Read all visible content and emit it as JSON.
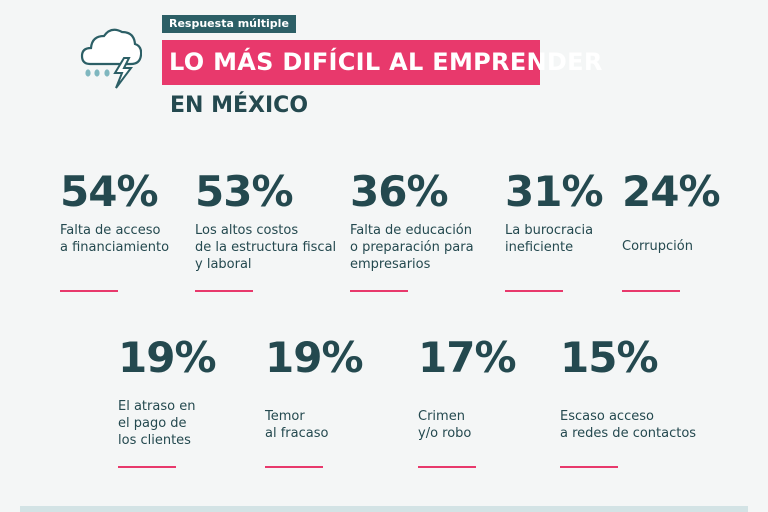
{
  "header": {
    "tag": "Respuesta múltiple",
    "title": "LO MÁS DIFÍCIL AL EMPRENDER",
    "subtitle": "EN MÉXICO"
  },
  "icons": {
    "weather": "storm-cloud-icon"
  },
  "colors": {
    "accent": "#e8396c",
    "primary": "#24494f",
    "tag": "#2c5f66"
  },
  "chart_data": {
    "type": "table",
    "title": "LO MÁS DIFÍCIL AL EMPRENDER EN MÉXICO",
    "items": [
      {
        "value": 54,
        "display": "54%",
        "label": "Falta de acceso\na financiamiento"
      },
      {
        "value": 53,
        "display": "53%",
        "label": "Los altos costos\nde la estructura fiscal\ny laboral"
      },
      {
        "value": 36,
        "display": "36%",
        "label": "Falta de educación\no preparación para\nempresarios"
      },
      {
        "value": 31,
        "display": "31%",
        "label": "La burocracia\nineficiente"
      },
      {
        "value": 24,
        "display": "24%",
        "label": "Corrupción"
      },
      {
        "value": 19,
        "display": "19%",
        "label": "El atraso en\nel pago de\nlos clientes"
      },
      {
        "value": 19,
        "display": "19%",
        "label": "Temor\nal fracaso"
      },
      {
        "value": 17,
        "display": "17%",
        "label": "Crimen\ny/o robo"
      },
      {
        "value": 15,
        "display": "15%",
        "label": "Escaso acceso\na redes de contactos"
      }
    ]
  }
}
